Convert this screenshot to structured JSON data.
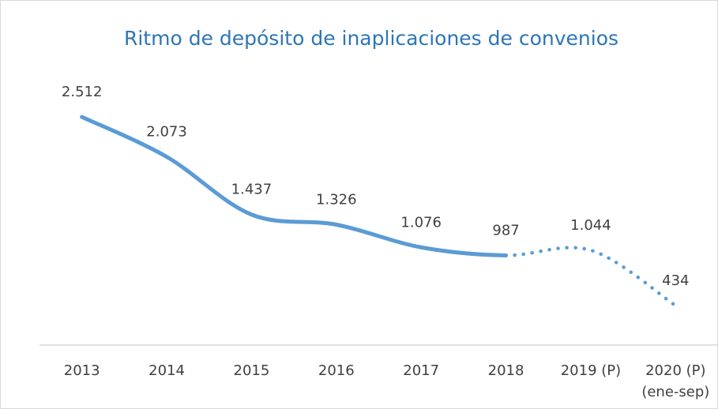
{
  "chart_data": {
    "type": "line",
    "title": "Ritmo de depósito de inaplicaciones de convenios",
    "categories": [
      "2013",
      "2014",
      "2015",
      "2016",
      "2017",
      "2018",
      "2019 (P)",
      "2020 (P)\n(ene-sep)"
    ],
    "values": [
      2512,
      2073,
      1437,
      1326,
      1076,
      987,
      1044,
      434
    ],
    "value_labels": [
      "2.512",
      "2.073",
      "1.437",
      "1.326",
      "1.076",
      "987",
      "1.044",
      "434"
    ],
    "styles": [
      "solid",
      "solid",
      "solid",
      "solid",
      "solid",
      "solid",
      "dotted",
      "dotted"
    ],
    "color": "#5b9bd5",
    "ylim": [
      0,
      3000
    ],
    "grid": false
  }
}
